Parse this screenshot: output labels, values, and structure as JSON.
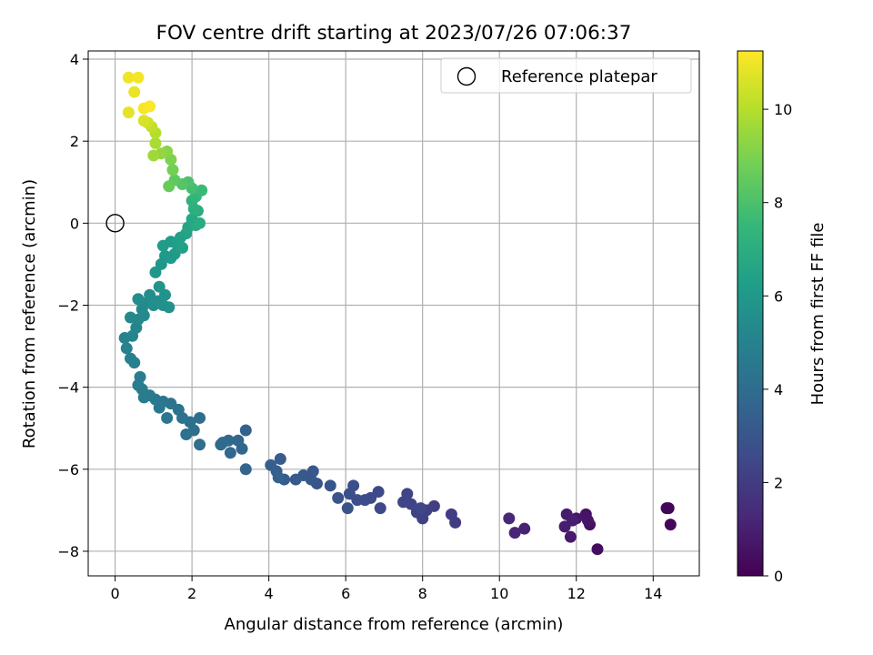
{
  "chart_data": {
    "type": "scatter",
    "title": "FOV centre drift starting at 2023/07/26 07:06:37",
    "xlabel": "Angular distance from reference (arcmin)",
    "ylabel": "Rotation from reference (arcmin)",
    "xlim": [
      -0.7,
      15.2
    ],
    "ylim": [
      -8.6,
      4.2
    ],
    "xticks": [
      0,
      2,
      4,
      6,
      8,
      10,
      12,
      14
    ],
    "yticks": [
      -8,
      -6,
      -4,
      -2,
      0,
      2,
      4
    ],
    "grid": true,
    "legend": {
      "placement": "top-right",
      "entries": [
        "Reference platepar"
      ]
    },
    "reference_point": {
      "x": 0,
      "y": 0
    },
    "colorbar": {
      "label": "Hours from first FF file",
      "range": [
        0,
        11.25
      ],
      "ticks": [
        0,
        2,
        4,
        6,
        8,
        10
      ],
      "colormap": "viridis"
    },
    "colors": [
      "#440154",
      "#482878",
      "#3e4989",
      "#31688e",
      "#26828e",
      "#1f9e89",
      "#35b779",
      "#6ece58",
      "#b5de2b",
      "#fde725"
    ],
    "points": [
      [
        14.4,
        -6.95,
        0.1
      ],
      [
        14.35,
        -6.95,
        0.15
      ],
      [
        14.45,
        -7.35,
        0.2
      ],
      [
        12.55,
        -7.95,
        0.4
      ],
      [
        12.35,
        -7.35,
        0.5
      ],
      [
        12.25,
        -7.1,
        0.6
      ],
      [
        12.3,
        -7.25,
        0.65
      ],
      [
        12.0,
        -7.2,
        0.7
      ],
      [
        11.85,
        -7.65,
        0.8
      ],
      [
        11.75,
        -7.1,
        0.85
      ],
      [
        11.7,
        -7.4,
        0.9
      ],
      [
        11.9,
        -7.25,
        0.95
      ],
      [
        10.65,
        -7.45,
        1.1
      ],
      [
        10.4,
        -7.55,
        1.2
      ],
      [
        10.25,
        -7.2,
        1.3
      ],
      [
        8.85,
        -7.3,
        2.0
      ],
      [
        8.75,
        -7.1,
        2.05
      ],
      [
        8.3,
        -6.9,
        2.1
      ],
      [
        8.1,
        -7.0,
        2.15
      ],
      [
        8.0,
        -7.2,
        2.2
      ],
      [
        7.85,
        -7.05,
        2.25
      ],
      [
        7.7,
        -6.85,
        2.3
      ],
      [
        7.6,
        -6.6,
        2.35
      ],
      [
        7.5,
        -6.8,
        2.4
      ],
      [
        7.95,
        -6.95,
        2.45
      ],
      [
        6.9,
        -6.95,
        2.5
      ],
      [
        6.85,
        -6.55,
        2.55
      ],
      [
        6.65,
        -6.7,
        2.6
      ],
      [
        6.5,
        -6.75,
        2.65
      ],
      [
        6.3,
        -6.75,
        2.7
      ],
      [
        6.2,
        -6.4,
        2.75
      ],
      [
        6.1,
        -6.6,
        2.8
      ],
      [
        6.05,
        -6.95,
        2.85
      ],
      [
        5.8,
        -6.7,
        2.9
      ],
      [
        5.6,
        -6.4,
        2.95
      ],
      [
        5.25,
        -6.35,
        3.0
      ],
      [
        5.15,
        -6.05,
        3.05
      ],
      [
        5.1,
        -6.25,
        3.1
      ],
      [
        4.9,
        -6.15,
        3.15
      ],
      [
        4.7,
        -6.25,
        3.2
      ],
      [
        4.4,
        -6.25,
        3.25
      ],
      [
        4.3,
        -5.75,
        3.3
      ],
      [
        4.2,
        -6.05,
        3.35
      ],
      [
        4.05,
        -5.9,
        3.4
      ],
      [
        4.25,
        -6.2,
        3.45
      ],
      [
        3.4,
        -5.05,
        3.55
      ],
      [
        3.4,
        -6.0,
        3.6
      ],
      [
        3.3,
        -5.5,
        3.65
      ],
      [
        3.2,
        -5.3,
        3.7
      ],
      [
        3.0,
        -5.6,
        3.75
      ],
      [
        2.95,
        -5.3,
        3.8
      ],
      [
        2.8,
        -5.35,
        3.85
      ],
      [
        2.75,
        -5.4,
        3.9
      ],
      [
        2.2,
        -4.75,
        4.0
      ],
      [
        2.2,
        -5.4,
        4.05
      ],
      [
        2.05,
        -5.05,
        4.1
      ],
      [
        1.95,
        -4.85,
        4.15
      ],
      [
        1.85,
        -5.15,
        4.2
      ],
      [
        1.75,
        -4.75,
        4.25
      ],
      [
        1.65,
        -4.55,
        4.3
      ],
      [
        1.45,
        -4.4,
        4.35
      ],
      [
        1.35,
        -4.75,
        4.4
      ],
      [
        1.25,
        -4.35,
        4.45
      ],
      [
        1.15,
        -4.5,
        4.5
      ],
      [
        1.05,
        -4.3,
        4.55
      ],
      [
        0.9,
        -4.2,
        4.6
      ],
      [
        0.75,
        -4.25,
        4.65
      ],
      [
        0.7,
        -4.05,
        4.7
      ],
      [
        0.6,
        -3.95,
        4.75
      ],
      [
        0.65,
        -3.75,
        4.8
      ],
      [
        0.5,
        -3.4,
        4.9
      ],
      [
        0.4,
        -3.3,
        4.95
      ],
      [
        0.3,
        -3.05,
        5.0
      ],
      [
        0.25,
        -2.8,
        5.05
      ],
      [
        0.45,
        -2.75,
        5.1
      ],
      [
        0.55,
        -2.55,
        5.15
      ],
      [
        0.6,
        -2.35,
        5.2
      ],
      [
        0.4,
        -2.3,
        5.25
      ],
      [
        0.7,
        -2.1,
        5.3
      ],
      [
        0.75,
        -2.25,
        5.35
      ],
      [
        0.8,
        -1.95,
        5.4
      ],
      [
        0.6,
        -1.85,
        5.45
      ],
      [
        0.9,
        -1.75,
        5.5
      ],
      [
        1.0,
        -2.0,
        5.55
      ],
      [
        1.1,
        -1.9,
        5.6
      ],
      [
        1.25,
        -2.0,
        5.65
      ],
      [
        1.4,
        -2.05,
        5.7
      ],
      [
        1.3,
        -1.75,
        5.75
      ],
      [
        1.15,
        -1.55,
        5.8
      ],
      [
        1.05,
        -1.2,
        5.9
      ],
      [
        1.2,
        -1.0,
        5.95
      ],
      [
        1.3,
        -0.8,
        6.0
      ],
      [
        1.45,
        -0.85,
        6.05
      ],
      [
        1.55,
        -0.75,
        6.1
      ],
      [
        1.45,
        -0.45,
        6.15
      ],
      [
        1.25,
        -0.55,
        6.2
      ],
      [
        1.6,
        -0.5,
        6.3
      ],
      [
        1.7,
        -0.35,
        6.35
      ],
      [
        1.75,
        -0.6,
        6.4
      ],
      [
        1.85,
        -0.25,
        6.45
      ],
      [
        1.9,
        -0.1,
        6.6
      ],
      [
        2.0,
        0.1,
        6.7
      ],
      [
        2.1,
        -0.05,
        6.8
      ],
      [
        2.2,
        0.0,
        6.9
      ],
      [
        2.15,
        0.3,
        7.0
      ],
      [
        2.05,
        0.35,
        7.1
      ],
      [
        2.0,
        0.55,
        7.2
      ],
      [
        2.1,
        0.65,
        7.4
      ],
      [
        2.25,
        0.8,
        7.6
      ],
      [
        2.0,
        0.85,
        7.8
      ],
      [
        1.9,
        1.0,
        8.0
      ],
      [
        1.75,
        0.95,
        8.2
      ],
      [
        1.55,
        1.05,
        8.4
      ],
      [
        1.4,
        0.9,
        8.6
      ],
      [
        1.5,
        1.3,
        8.8
      ],
      [
        1.45,
        1.55,
        9.0
      ],
      [
        1.35,
        1.75,
        9.2
      ],
      [
        1.2,
        1.7,
        9.4
      ],
      [
        1.0,
        1.65,
        9.6
      ],
      [
        1.05,
        1.95,
        9.8
      ],
      [
        1.05,
        2.2,
        10.0
      ],
      [
        0.95,
        2.35,
        10.2
      ],
      [
        0.85,
        2.45,
        10.4
      ],
      [
        0.75,
        2.5,
        10.6
      ],
      [
        0.35,
        2.7,
        10.8
      ],
      [
        0.5,
        3.2,
        10.9
      ],
      [
        0.35,
        3.55,
        11.0
      ],
      [
        0.6,
        3.55,
        11.1
      ],
      [
        0.75,
        2.8,
        11.15
      ],
      [
        0.9,
        2.85,
        11.2
      ]
    ]
  }
}
